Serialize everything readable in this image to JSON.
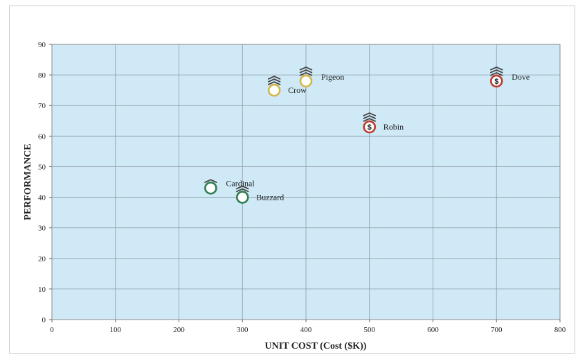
{
  "chart_data": {
    "type": "scatter",
    "title": "",
    "xlabel": "UNIT COST (Cost ($K))",
    "ylabel": "PERFORMANCE",
    "xlim": [
      0,
      800
    ],
    "ylim": [
      0,
      90
    ],
    "xticks": [
      0,
      100,
      200,
      300,
      400,
      500,
      600,
      700,
      800
    ],
    "yticks": [
      0,
      10,
      20,
      30,
      40,
      50,
      60,
      70,
      80,
      90
    ],
    "grid": true,
    "plot_background": "#cfe9f7",
    "points": [
      {
        "label": "Cardinal",
        "x": 250,
        "y": 43,
        "color": "#2e7d4f",
        "fill": "#ffffff",
        "bars": 1,
        "badge": "",
        "label_pos": "above-right"
      },
      {
        "label": "Buzzard",
        "x": 300,
        "y": 40,
        "color": "#2e7d4f",
        "fill": "#ffffff",
        "bars": 2,
        "badge": "",
        "label_pos": "right"
      },
      {
        "label": "Crow",
        "x": 350,
        "y": 75,
        "color": "#d4b64a",
        "fill": "#ffffff",
        "bars": 3,
        "badge": "",
        "label_pos": "right"
      },
      {
        "label": "Pigeon",
        "x": 400,
        "y": 78,
        "color": "#d4b64a",
        "fill": "#ffffff",
        "bars": 3,
        "badge": "",
        "label_pos": "right-up"
      },
      {
        "label": "Robin",
        "x": 500,
        "y": 63,
        "color": "#c0392b",
        "fill": "#ffffff",
        "bars": 3,
        "badge": "$",
        "label_pos": "right"
      },
      {
        "label": "Dove",
        "x": 700,
        "y": 78,
        "color": "#c0392b",
        "fill": "#ffffff",
        "bars": 3,
        "badge": "$",
        "label_pos": "right-up"
      }
    ]
  }
}
